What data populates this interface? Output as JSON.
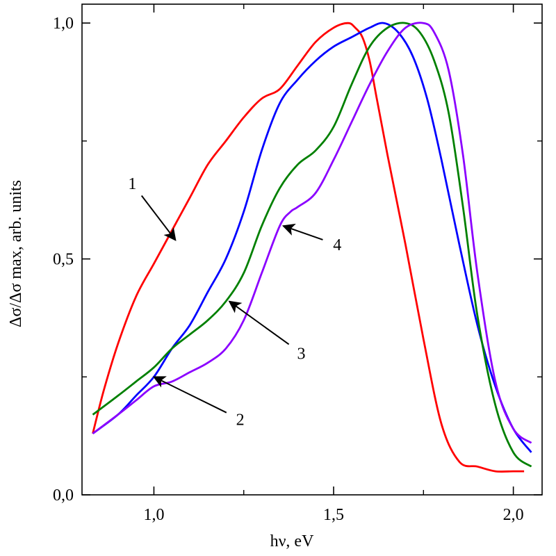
{
  "chart_data": {
    "type": "line",
    "xlabel": "hν, eV",
    "ylabel": "Δσ/Δσ max, arb. units",
    "xlim": [
      0.8,
      2.08
    ],
    "ylim": [
      0.0,
      1.04
    ],
    "x_ticks": [
      1.0,
      1.5,
      2.0
    ],
    "x_tick_labels": [
      "1,0",
      "1,5",
      "2,0"
    ],
    "y_ticks": [
      0.0,
      0.5,
      1.0
    ],
    "y_tick_labels": [
      "0,0",
      "0,5",
      "1,0"
    ],
    "grid": false,
    "legend": "none",
    "series": [
      {
        "color": "#ff0000",
        "x": [
          0.83,
          0.86,
          0.9,
          0.95,
          1.0,
          1.05,
          1.1,
          1.15,
          1.2,
          1.25,
          1.3,
          1.35,
          1.4,
          1.45,
          1.5,
          1.54,
          1.56,
          1.58,
          1.6,
          1.62,
          1.65,
          1.7,
          1.75,
          1.8,
          1.85,
          1.9,
          1.95,
          2.0,
          2.03
        ],
        "y": [
          0.13,
          0.22,
          0.32,
          0.42,
          0.49,
          0.56,
          0.63,
          0.7,
          0.75,
          0.8,
          0.84,
          0.86,
          0.91,
          0.96,
          0.99,
          1.0,
          0.99,
          0.97,
          0.92,
          0.84,
          0.72,
          0.53,
          0.33,
          0.15,
          0.07,
          0.06,
          0.05,
          0.05,
          0.05
        ]
      },
      {
        "color": "#0000ff",
        "x": [
          0.83,
          0.9,
          0.95,
          1.0,
          1.05,
          1.1,
          1.15,
          1.2,
          1.25,
          1.3,
          1.35,
          1.4,
          1.45,
          1.5,
          1.55,
          1.6,
          1.64,
          1.68,
          1.72,
          1.76,
          1.8,
          1.85,
          1.9,
          1.95,
          2.0,
          2.05
        ],
        "y": [
          0.13,
          0.17,
          0.21,
          0.25,
          0.31,
          0.36,
          0.43,
          0.5,
          0.6,
          0.73,
          0.83,
          0.88,
          0.92,
          0.95,
          0.97,
          0.99,
          1.0,
          0.98,
          0.93,
          0.84,
          0.71,
          0.53,
          0.36,
          0.23,
          0.14,
          0.09
        ]
      },
      {
        "color": "#008000",
        "x": [
          0.83,
          0.9,
          0.95,
          1.0,
          1.05,
          1.1,
          1.15,
          1.2,
          1.25,
          1.3,
          1.35,
          1.4,
          1.45,
          1.5,
          1.55,
          1.6,
          1.65,
          1.7,
          1.74,
          1.78,
          1.82,
          1.86,
          1.9,
          1.95,
          2.0,
          2.05
        ],
        "y": [
          0.17,
          0.21,
          0.24,
          0.27,
          0.31,
          0.34,
          0.37,
          0.41,
          0.47,
          0.57,
          0.65,
          0.7,
          0.73,
          0.78,
          0.87,
          0.95,
          0.99,
          1.0,
          0.98,
          0.92,
          0.81,
          0.61,
          0.38,
          0.19,
          0.09,
          0.06
        ]
      },
      {
        "color": "#8b00ff",
        "x": [
          0.83,
          0.9,
          0.95,
          1.0,
          1.05,
          1.1,
          1.15,
          1.2,
          1.25,
          1.3,
          1.35,
          1.38,
          1.4,
          1.45,
          1.5,
          1.55,
          1.6,
          1.65,
          1.7,
          1.75,
          1.78,
          1.82,
          1.86,
          1.9,
          1.95,
          2.0,
          2.05
        ],
        "y": [
          0.13,
          0.17,
          0.2,
          0.23,
          0.24,
          0.26,
          0.28,
          0.31,
          0.37,
          0.47,
          0.57,
          0.6,
          0.61,
          0.64,
          0.71,
          0.79,
          0.87,
          0.94,
          0.99,
          1.0,
          0.98,
          0.9,
          0.72,
          0.47,
          0.24,
          0.14,
          0.11
        ]
      }
    ],
    "annotations": [
      {
        "text": "1",
        "arrow_to": [
          1.06,
          0.54
        ],
        "label_at": [
          0.94,
          0.66
        ]
      },
      {
        "text": "2",
        "arrow_to": [
          1.0,
          0.25
        ],
        "label_at": [
          1.24,
          0.16
        ]
      },
      {
        "text": "3",
        "arrow_to": [
          1.21,
          0.41
        ],
        "label_at": [
          1.41,
          0.3
        ]
      },
      {
        "text": "4",
        "arrow_to": [
          1.36,
          0.57
        ],
        "label_at": [
          1.51,
          0.53
        ]
      }
    ]
  }
}
